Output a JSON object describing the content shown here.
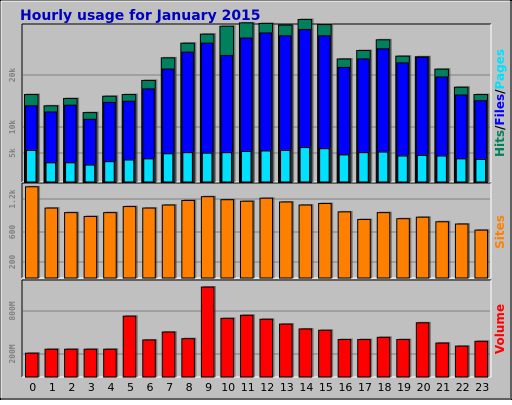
{
  "chart_data": {
    "type": "bar",
    "title": "Hourly usage for January 2015",
    "categories": [
      "0",
      "1",
      "2",
      "3",
      "4",
      "5",
      "6",
      "7",
      "8",
      "9",
      "10",
      "11",
      "12",
      "13",
      "14",
      "15",
      "16",
      "17",
      "18",
      "19",
      "20",
      "21",
      "22",
      "23"
    ],
    "colors": {
      "frame_bg": "#c0c0c0",
      "panel_bg": "#c0c0c0",
      "grid": "#808080",
      "hits": "#00805c",
      "files": "#0000ff",
      "pages": "#00e0ff",
      "sites": "#ff8000",
      "volume": "#ff0000",
      "title": "#0000c0",
      "tick": "#808080"
    },
    "panels": [
      {
        "id": "usage",
        "legend": [
          {
            "text": "Hits",
            "color": "#00805c"
          },
          {
            "text": "/",
            "color": "#000000"
          },
          {
            "text": "Files",
            "color": "#0000ff"
          },
          {
            "text": "/",
            "color": "#000000"
          },
          {
            "text": "Pages",
            "color": "#00e0ff"
          }
        ],
        "yticks": [
          "5k",
          "10k",
          "20k"
        ],
        "ylim": [
          0,
          28000
        ],
        "series": [
          {
            "name": "Hits",
            "color": "#00805c",
            "values": [
              15500,
              13500,
              14800,
              12300,
              15200,
              15500,
              18000,
              22000,
              24600,
              26200,
              27600,
              28200,
              28100,
              27800,
              28800,
              27900,
              21800,
              23300,
              25200,
              22300,
              22200,
              20000,
              16800,
              15500
            ]
          },
          {
            "name": "Files",
            "color": "#0000ff",
            "values": [
              13500,
              12400,
              13600,
              11100,
              14100,
              14300,
              16500,
              20000,
              23000,
              24600,
              22400,
              25500,
              26400,
              25900,
              27000,
              25900,
              20300,
              21800,
              23600,
              21100,
              22100,
              18600,
              15400,
              14400
            ]
          },
          {
            "name": "Pages",
            "color": "#00e0ff",
            "values": [
              5600,
              3400,
              3400,
              3000,
              3600,
              3900,
              4100,
              5000,
              5200,
              5100,
              5200,
              5400,
              5500,
              5600,
              6100,
              5900,
              4800,
              5200,
              5300,
              4600,
              4700,
              4600,
              4100,
              4000
            ]
          }
        ]
      },
      {
        "id": "sites",
        "legend": [
          {
            "text": "Sites",
            "color": "#ff8000"
          }
        ],
        "yticks": [
          "200",
          "600",
          "1.2k"
        ],
        "ylim": [
          0,
          1250
        ],
        "series": [
          {
            "name": "Sites",
            "color": "#ff8000",
            "values": [
              1200,
              920,
              860,
              810,
              860,
              940,
              920,
              960,
              1020,
              1070,
              1030,
              1010,
              1050,
              1000,
              960,
              980,
              870,
              770,
              860,
              780,
              800,
              740,
              710,
              630
            ]
          }
        ]
      },
      {
        "id": "volume",
        "legend": [
          {
            "text": "Volume",
            "color": "#ff0000"
          }
        ],
        "yticks": [
          "200M",
          "800M"
        ],
        "ylim": [
          0,
          1100
        ],
        "series": [
          {
            "name": "Volume",
            "color": "#ff0000",
            "values": [
              270,
              315,
              315,
              315,
              315,
              690,
              420,
              510,
              435,
              1020,
              665,
              700,
              655,
              600,
              545,
              530,
              425,
              425,
              450,
              425,
              615,
              385,
              350,
              405
            ]
          }
        ]
      }
    ]
  }
}
